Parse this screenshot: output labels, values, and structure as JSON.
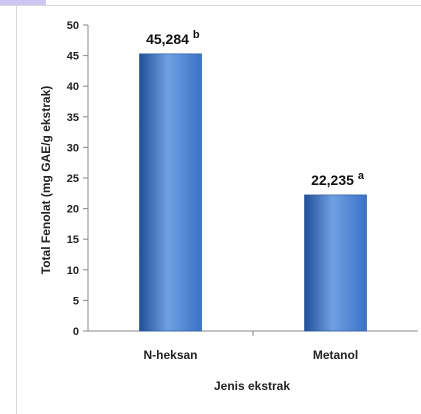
{
  "top_strip_text": "",
  "chart_data": {
    "type": "bar",
    "categories": [
      "N-heksan",
      "Metanol"
    ],
    "values": [
      45.284,
      22.235
    ],
    "data_labels": [
      "45,284",
      "22,235"
    ],
    "significance": [
      "b",
      "a"
    ],
    "xlabel": "Jenis ekstrak",
    "ylabel": "Total Fenolat (mg GAE/g ekstrak)",
    "ylim": [
      0,
      50
    ],
    "yticks": [
      0,
      5,
      10,
      15,
      20,
      25,
      30,
      35,
      40,
      45,
      50
    ],
    "grid": false,
    "bar_color": "#3a73c8",
    "bar_color_light": "#6fa0e2",
    "bar_color_dark": "#1f4f98"
  }
}
